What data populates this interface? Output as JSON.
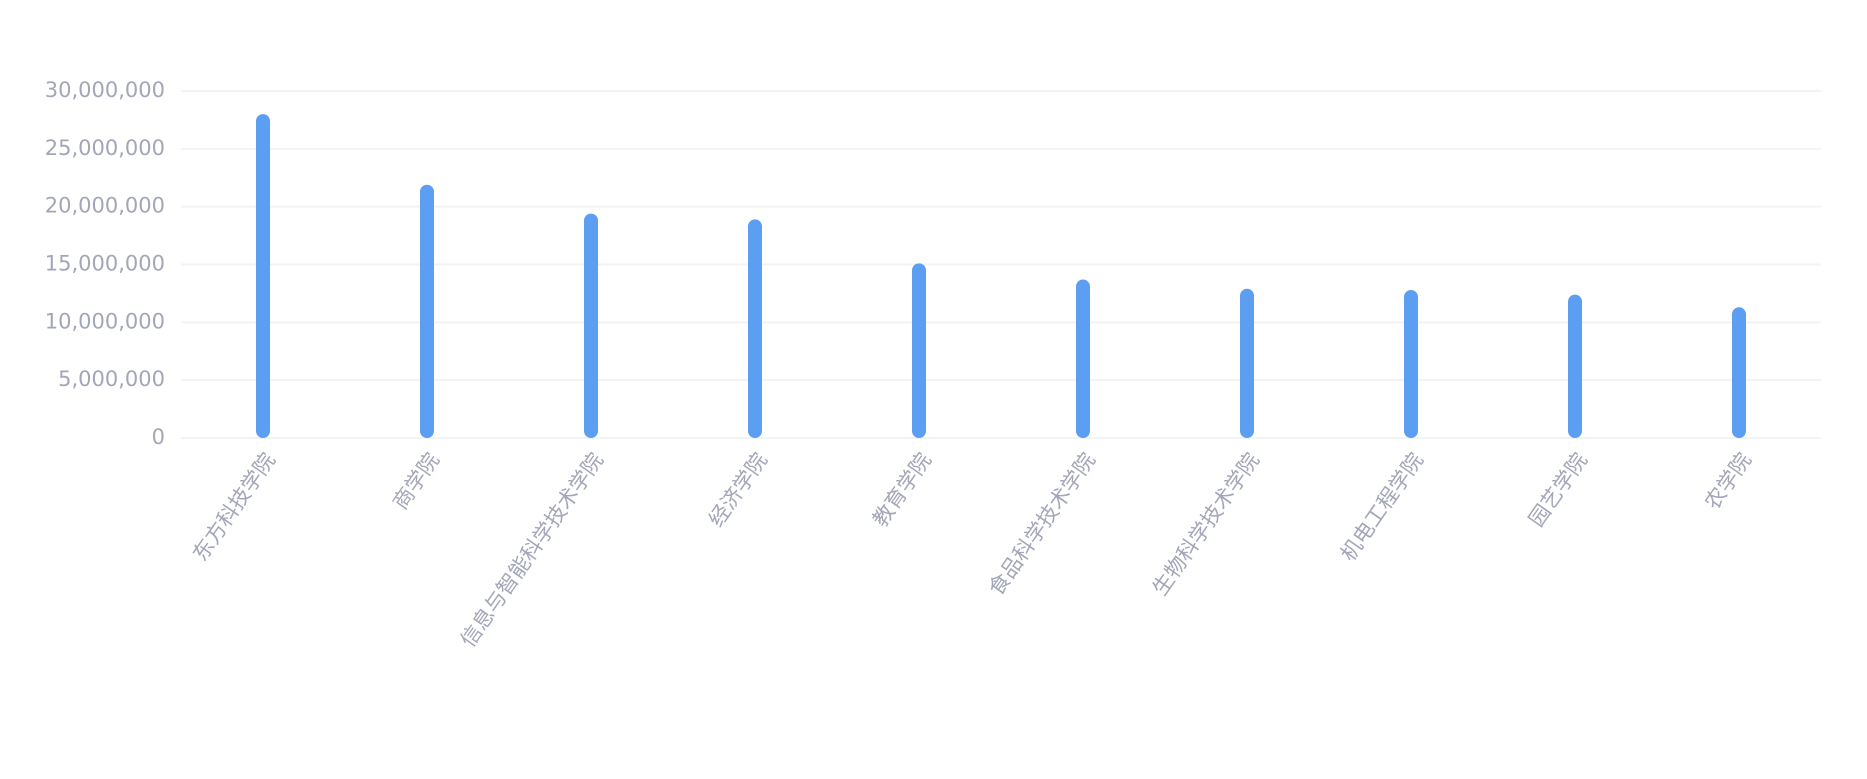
{
  "chart_data": {
    "type": "bar",
    "categories": [
      "东方科技学院",
      "商学院",
      "信息与智能科学技术学院",
      "经济学院",
      "教育学院",
      "食品科学技术学院",
      "生物科学技术学院",
      "机电工程学院",
      "园艺学院",
      "农学院"
    ],
    "values": [
      28000000,
      21900000,
      19400000,
      18900000,
      15100000,
      13700000,
      12900000,
      12800000,
      12400000,
      11300000
    ],
    "color": "#5b9ef2",
    "ylim": [
      0,
      30000000
    ],
    "yticks": [
      0,
      {
        "value": 5000000,
        "label": "5,000,000"
      },
      {
        "value": 10000000,
        "label": "10,000,000"
      },
      {
        "value": 15000000,
        "label": "15,000,000"
      },
      {
        "value": 20000000,
        "label": "20,000,000"
      },
      {
        "value": 25000000,
        "label": "25,000,000"
      },
      {
        "value": 30000000,
        "label": "30,000,000"
      }
    ],
    "grid": true
  }
}
